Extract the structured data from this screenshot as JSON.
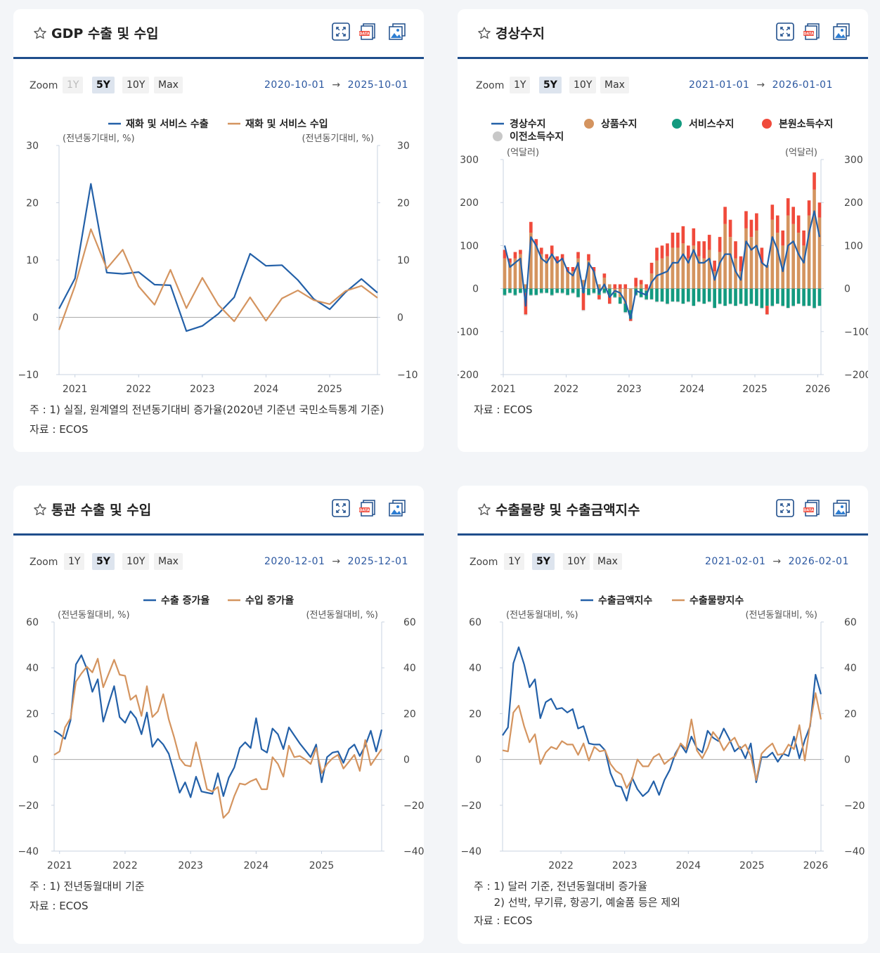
{
  "colors": {
    "blue": "#2360a8",
    "orange": "#d4945f",
    "green": "#139a7f",
    "red": "#f04a3b",
    "gray": "#c8c8c8",
    "frame": "#1f4e8c"
  },
  "icons": {
    "favorite": "star-outline-icon",
    "expand": "expand-icon",
    "data": "data-download-icon",
    "image": "image-download-icon"
  },
  "zoom": {
    "label": "Zoom",
    "buttons": [
      "1Y",
      "5Y",
      "10Y",
      "Max"
    ],
    "arrow": "→"
  },
  "cards": [
    {
      "title": "GDP 수출 및 수입",
      "range_start": "2020-10-01",
      "range_end": "2025-10-01",
      "notes": [
        "주 : 1) 실질, 원계열의 전년동기대비 증가율(2020년 기준년 국민소득통계 기준)",
        "자료 :  ECOS"
      ]
    },
    {
      "title": "경상수지",
      "range_start": "2021-01-01",
      "range_end": "2026-01-01",
      "notes": [
        "자료 :  ECOS"
      ]
    },
    {
      "title": "통관 수출 및 수입",
      "range_start": "2020-12-01",
      "range_end": "2025-12-01",
      "notes": [
        "주 : 1) 전년동월대비 기준",
        "자료 :  ECOS"
      ]
    },
    {
      "title": "수출물량 및 수출금액지수",
      "range_start": "2021-02-01",
      "range_end": "2026-02-01",
      "notes": [
        "주 : 1) 달러 기준, 전년동월대비 증가율",
        "      2) 선박, 무기류, 항공기, 예술품 등은 제외",
        "자료 :  ECOS"
      ]
    }
  ],
  "chart_data": [
    {
      "type": "line",
      "title": "GDP 수출 및 수입",
      "ylabel_left": "(전년동기대비, %)",
      "ylabel_right": "(전년동기대비, %)",
      "ylim": [
        -10,
        30
      ],
      "yticks": [
        -10,
        0,
        10,
        20,
        30
      ],
      "xlim": [
        2020.75,
        2025.75
      ],
      "xticks": [
        2021,
        2022,
        2023,
        2024,
        2025
      ],
      "series": [
        {
          "name": "재화 및 서비스 수출",
          "color": "#2360a8",
          "x": [
            2020.75,
            2021,
            2021.25,
            2021.5,
            2021.75,
            2022,
            2022.25,
            2022.5,
            2022.75,
            2023,
            2023.25,
            2023.5,
            2023.75,
            2024,
            2024.25,
            2024.5,
            2024.75,
            2025,
            2025.25,
            2025.5,
            2025.75
          ],
          "values": [
            1.5,
            6.8,
            23.3,
            7.8,
            7.6,
            7.9,
            5.7,
            5.6,
            -2.4,
            -1.5,
            0.6,
            3.5,
            11.1,
            9.0,
            9.1,
            6.5,
            3.2,
            1.4,
            4.4,
            6.7,
            4.3
          ]
        },
        {
          "name": "재화 및 서비스 수입",
          "color": "#d4945f",
          "x": [
            2020.75,
            2021,
            2021.25,
            2021.5,
            2021.75,
            2022,
            2022.25,
            2022.5,
            2022.75,
            2023,
            2023.25,
            2023.5,
            2023.75,
            2024,
            2024.25,
            2024.5,
            2024.75,
            2025,
            2025.25,
            2025.5,
            2025.75
          ],
          "values": [
            -2.2,
            5.5,
            15.4,
            8.5,
            11.8,
            5.4,
            2.2,
            8.3,
            1.6,
            6.9,
            2.2,
            -0.7,
            3.5,
            -0.6,
            3.3,
            4.7,
            3.0,
            2.3,
            4.6,
            5.5,
            3.4
          ]
        }
      ]
    },
    {
      "type": "bar",
      "title": "경상수지",
      "ylabel_left": "(억달러)",
      "ylabel_right": "(억달러)",
      "ylim": [
        -200,
        300
      ],
      "yticks": [
        -200,
        -100,
        0,
        100,
        200,
        300
      ],
      "xlim": [
        2021,
        2026.05
      ],
      "xticks": [
        2021,
        2022,
        2023,
        2024,
        2025,
        2026
      ],
      "months": 61,
      "series": [
        {
          "name": "경상수지",
          "type": "line",
          "color": "#2360a8",
          "values": [
            100,
            50,
            60,
            70,
            -40,
            120,
            100,
            70,
            60,
            80,
            60,
            70,
            40,
            30,
            60,
            -10,
            60,
            40,
            -10,
            10,
            -20,
            -5,
            -10,
            -30,
            -70,
            -5,
            -10,
            -15,
            15,
            30,
            35,
            40,
            60,
            60,
            80,
            60,
            90,
            60,
            60,
            70,
            20,
            60,
            80,
            80,
            40,
            20,
            110,
            90,
            100,
            60,
            50,
            120,
            90,
            40,
            100,
            110,
            80,
            60,
            130,
            180,
            120
          ]
        },
        {
          "name": "상품수지",
          "type": "bar",
          "color": "#d4945f",
          "values": [
            70,
            60,
            70,
            80,
            10,
            130,
            100,
            80,
            70,
            80,
            60,
            65,
            40,
            40,
            70,
            20,
            65,
            40,
            10,
            25,
            10,
            -10,
            -20,
            -35,
            -50,
            5,
            10,
            -5,
            35,
            65,
            70,
            75,
            95,
            95,
            105,
            70,
            100,
            75,
            70,
            90,
            40,
            85,
            150,
            120,
            70,
            40,
            140,
            120,
            135,
            60,
            55,
            160,
            130,
            100,
            170,
            150,
            130,
            100,
            170,
            230,
            165
          ]
        },
        {
          "name": "서비스수지",
          "type": "bar",
          "color": "#139a7f",
          "values": [
            -15,
            -10,
            -15,
            -10,
            -10,
            -15,
            -15,
            -10,
            -10,
            -15,
            -10,
            -10,
            -15,
            -10,
            -20,
            -10,
            -15,
            -10,
            -15,
            -10,
            -15,
            -10,
            -15,
            -20,
            -20,
            -15,
            -20,
            -20,
            -25,
            -30,
            -30,
            -35,
            -30,
            -30,
            -35,
            -30,
            -40,
            -30,
            -35,
            -30,
            -45,
            -35,
            -40,
            -35,
            -40,
            -35,
            -40,
            -35,
            -40,
            -45,
            -40,
            -40,
            -35,
            -40,
            -45,
            -40,
            -35,
            -40,
            -40,
            -45,
            -40
          ]
        },
        {
          "name": "본원소득수지",
          "type": "bar",
          "color": "#f04a3b",
          "values": [
            20,
            10,
            15,
            10,
            -50,
            25,
            15,
            15,
            10,
            20,
            15,
            15,
            10,
            10,
            15,
            -40,
            15,
            10,
            -10,
            10,
            -20,
            10,
            10,
            10,
            -5,
            20,
            10,
            10,
            25,
            30,
            30,
            30,
            35,
            35,
            40,
            30,
            40,
            35,
            40,
            35,
            25,
            35,
            40,
            40,
            40,
            35,
            40,
            40,
            40,
            35,
            -20,
            35,
            40,
            35,
            40,
            40,
            40,
            35,
            35,
            40,
            35
          ]
        },
        {
          "name": "이전소득수지",
          "type": "bar",
          "color": "#c8c8c8",
          "values": [
            -2,
            -1,
            -2,
            -1,
            -2,
            -2,
            -1,
            -2,
            -1,
            -2,
            -1,
            -2,
            -1,
            -2,
            -1,
            -2,
            -1,
            -2,
            -1,
            -2,
            -1,
            -2,
            -1,
            -2,
            -1,
            -2,
            -1,
            -2,
            -1,
            -2,
            -1,
            -2,
            -1,
            -2,
            -1,
            -2,
            -1,
            -2,
            -1,
            -2,
            -1,
            -2,
            -1,
            -2,
            -1,
            -2,
            -1,
            -2,
            -1,
            -2,
            -1,
            -2,
            -1,
            -2,
            -1,
            -2,
            -1,
            -2,
            -1,
            -2,
            -1
          ]
        }
      ]
    },
    {
      "type": "line",
      "title": "통관 수출 및 수입",
      "ylabel_left": "(전년동월대비, %)",
      "ylabel_right": "(전년동월대비, %)",
      "ylim": [
        -40,
        60
      ],
      "yticks": [
        -40,
        -20,
        0,
        20,
        40,
        60
      ],
      "xlim": [
        2020.917,
        2025.917
      ],
      "xticks": [
        2021,
        2022,
        2023,
        2024,
        2025
      ],
      "series": [
        {
          "name": "수출 증가율",
          "color": "#2360a8",
          "values": [
            12.5,
            11,
            9,
            17,
            41.5,
            45.5,
            39.5,
            29.5,
            35,
            16.5,
            24.5,
            32,
            18.5,
            16,
            21,
            18,
            11,
            20.5,
            5.5,
            9,
            6.5,
            2.5,
            -6,
            -14.5,
            -10,
            -16.5,
            -7.5,
            -14,
            -14.5,
            -15,
            -6,
            -16,
            -8,
            -3.5,
            5,
            7.5,
            5,
            18,
            4.5,
            3,
            13.5,
            11,
            4.5,
            14,
            10.5,
            7,
            4,
            1,
            6.5,
            -10,
            1,
            3,
            3.5,
            -1.5,
            4.5,
            6.5,
            1.5,
            6,
            12.5,
            3.5,
            13
          ]
        },
        {
          "name": "수입 증가율",
          "color": "#d4945f",
          "values": [
            2,
            3.5,
            14,
            18,
            34,
            37.5,
            40.5,
            38,
            44,
            31.5,
            37.5,
            43.5,
            37,
            36.5,
            26,
            28,
            19,
            32,
            18.5,
            21,
            28.5,
            17.5,
            9.5,
            0.5,
            -2.5,
            -3,
            7.5,
            -2.5,
            -13,
            -14,
            -12,
            -25.5,
            -23,
            -16,
            -10.5,
            -11,
            -9.5,
            -8.5,
            -13,
            -13,
            1,
            -2,
            -7.5,
            6,
            1,
            1.5,
            0,
            -2,
            5,
            -6,
            -2,
            0.5,
            2,
            -4,
            -1,
            2,
            -5,
            8.5,
            -2.5,
            1,
            4.5
          ]
        }
      ]
    },
    {
      "type": "line",
      "title": "수출물량 및 수출금액지수",
      "ylabel_left": "(전년동월대비, %)",
      "ylabel_right": "(전년동월대비, %)",
      "ylim": [
        -40,
        60
      ],
      "yticks": [
        -40,
        -20,
        0,
        20,
        40,
        60
      ],
      "xlim": [
        2021.083,
        2026.083
      ],
      "xticks": [
        2022,
        2023,
        2024,
        2025,
        2026
      ],
      "series": [
        {
          "name": "수출금액지수",
          "color": "#2360a8",
          "values": [
            10.5,
            14,
            42,
            49,
            41.5,
            31.5,
            35,
            18,
            25,
            26.5,
            22,
            22.5,
            20.5,
            22,
            13.5,
            14.5,
            7,
            6.5,
            6.5,
            4,
            -6,
            -11.5,
            -12,
            -18,
            -8,
            -13,
            -16,
            -14,
            -9.5,
            -15.5,
            -9,
            -4.5,
            2.5,
            6.5,
            3,
            10,
            5,
            3,
            12.5,
            9.5,
            8,
            13.5,
            9,
            3.5,
            5.5,
            0.5,
            7,
            -10,
            1,
            1,
            3,
            -1,
            2.5,
            1.5,
            10,
            0.5,
            8.5,
            14.5,
            37,
            28.5
          ]
        },
        {
          "name": "수출물량지수",
          "color": "#d4945f",
          "values": [
            4,
            3.5,
            20.5,
            23.5,
            14.5,
            7.5,
            11,
            -2,
            3,
            5.5,
            4.5,
            8,
            6.5,
            6.5,
            2,
            7,
            -0.5,
            5.5,
            3.5,
            4,
            -2,
            -5,
            -6.5,
            -12.5,
            -8.5,
            0,
            -3,
            -3,
            1,
            2.5,
            -2,
            0,
            1.5,
            7,
            4.5,
            17.5,
            4,
            0.5,
            5,
            12,
            9,
            4,
            7.5,
            9.5,
            4.5,
            6.5,
            1.5,
            -9,
            2.5,
            5,
            7,
            2,
            2.5,
            6.5,
            4.5,
            15,
            -0.5,
            15.5,
            29,
            17.5
          ]
        }
      ]
    }
  ]
}
